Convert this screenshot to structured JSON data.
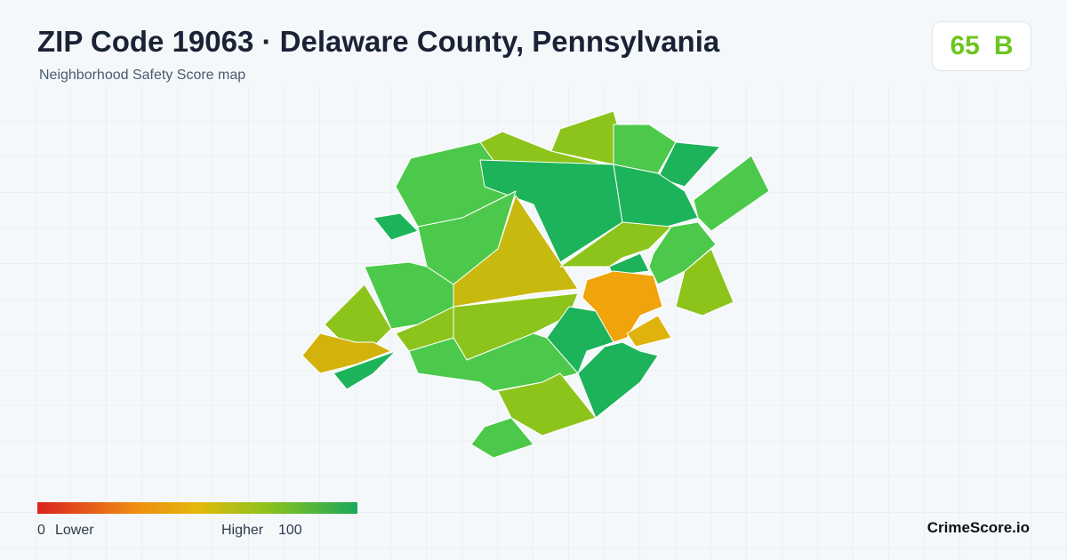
{
  "header": {
    "title": "ZIP Code 19063 · Delaware County, Pennsylvania",
    "subtitle": "Neighborhood Safety Score map"
  },
  "score": {
    "value": 65,
    "grade": "B"
  },
  "legend": {
    "min": 0,
    "min_label": "Lower",
    "max_label": "Higher",
    "max": 100
  },
  "brand": "CrimeScore.io"
}
